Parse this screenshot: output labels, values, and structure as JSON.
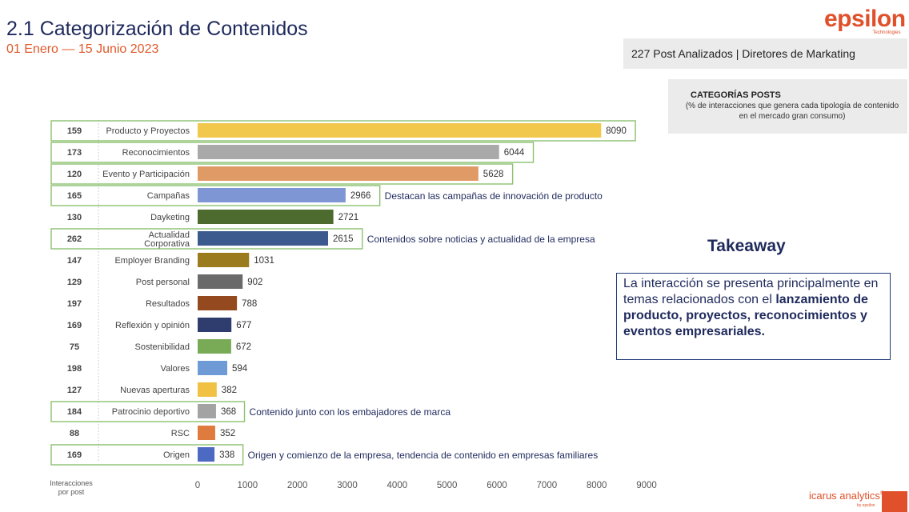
{
  "header": {
    "title": "2.1 Categorización de Contenidos",
    "subtitle": "01 Enero — 15 Junio 2023"
  },
  "brand": {
    "name": "epsilon",
    "tagline": "Technologies",
    "color": "#e0502a"
  },
  "posts_box": {
    "text": "227 Post Analizados | Diretores de Markating"
  },
  "categories_box": {
    "heading": "CATEGORÍAS POSTS",
    "description": "(% de interacciones que genera cada tipología de contenido en el mercado gran consumo)"
  },
  "axis_note": {
    "line1": "Interacciones",
    "line2": "por post"
  },
  "takeaway": {
    "title": "Takeaway",
    "text_plain": "La interacción se presenta principalmente en temas relacionados con el",
    "text_bold": "lanzamiento de producto, proyectos, reconocimientos y  eventos empresariales."
  },
  "footer": {
    "logo": "icarus analytics",
    "reg": "®",
    "sub": "by epsilon"
  },
  "chart_data": {
    "type": "bar",
    "orientation": "horizontal",
    "xlim": [
      0,
      9000
    ],
    "ticks": [
      0,
      1000,
      2000,
      3000,
      4000,
      5000,
      6000,
      7000,
      8000,
      9000
    ],
    "grid": false,
    "rows": [
      {
        "label": "Producto y Proyectos",
        "interactions_per_post": 159,
        "value": 8090,
        "color": "#f1c84b",
        "highlight": true,
        "annotation": ""
      },
      {
        "label": "Reconocimientos",
        "interactions_per_post": 173,
        "value": 6044,
        "color": "#a9a9a9",
        "highlight": true,
        "annotation": ""
      },
      {
        "label": "Evento y Participación",
        "interactions_per_post": 120,
        "value": 5628,
        "color": "#df9a66",
        "highlight": true,
        "annotation": ""
      },
      {
        "label": "Campañas",
        "interactions_per_post": 165,
        "value": 2966,
        "color": "#7f96d4",
        "highlight": true,
        "annotation": "Destacan las campañas de innovación de producto"
      },
      {
        "label": "Dayketing",
        "interactions_per_post": 130,
        "value": 2721,
        "color": "#4d6a2f",
        "highlight": false,
        "annotation": ""
      },
      {
        "label": "Actualidad Corporativa",
        "label_lines": [
          "Actualidad",
          "Corporativa"
        ],
        "interactions_per_post": 262,
        "value": 2615,
        "color": "#3d5a8e",
        "highlight": true,
        "annotation": "Contenidos sobre noticias y actualidad de la empresa"
      },
      {
        "label": "Employer Branding",
        "interactions_per_post": 147,
        "value": 1031,
        "color": "#9a7b1d",
        "highlight": false,
        "annotation": ""
      },
      {
        "label": "Post personal",
        "interactions_per_post": 129,
        "value": 902,
        "color": "#6a6a6a",
        "highlight": false,
        "annotation": ""
      },
      {
        "label": "Resultados",
        "interactions_per_post": 197,
        "value": 788,
        "color": "#944a1e",
        "highlight": false,
        "annotation": ""
      },
      {
        "label": "Reflexión y opinión",
        "interactions_per_post": 169,
        "value": 677,
        "color": "#2e3d6e",
        "highlight": false,
        "annotation": ""
      },
      {
        "label": "Sostenibilidad",
        "interactions_per_post": 75,
        "value": 672,
        "color": "#79aa55",
        "highlight": false,
        "annotation": ""
      },
      {
        "label": "Valores",
        "interactions_per_post": 198,
        "value": 594,
        "color": "#6e9bd6",
        "highlight": false,
        "annotation": ""
      },
      {
        "label": "Nuevas aperturas",
        "interactions_per_post": 127,
        "value": 382,
        "color": "#f0c142",
        "highlight": false,
        "annotation": ""
      },
      {
        "label": "Patrocinio deportivo",
        "interactions_per_post": 184,
        "value": 368,
        "color": "#a3a3a3",
        "highlight": true,
        "annotation": "Contenido junto con los embajadores de marca"
      },
      {
        "label": "RSC",
        "interactions_per_post": 88,
        "value": 352,
        "color": "#df7b3e",
        "highlight": false,
        "annotation": ""
      },
      {
        "label": "Origen",
        "interactions_per_post": 169,
        "value": 338,
        "color": "#4d6ac2",
        "highlight": true,
        "annotation": "Origen y comienzo de la empresa, tendencia de contenido en empresas familiares"
      }
    ]
  }
}
